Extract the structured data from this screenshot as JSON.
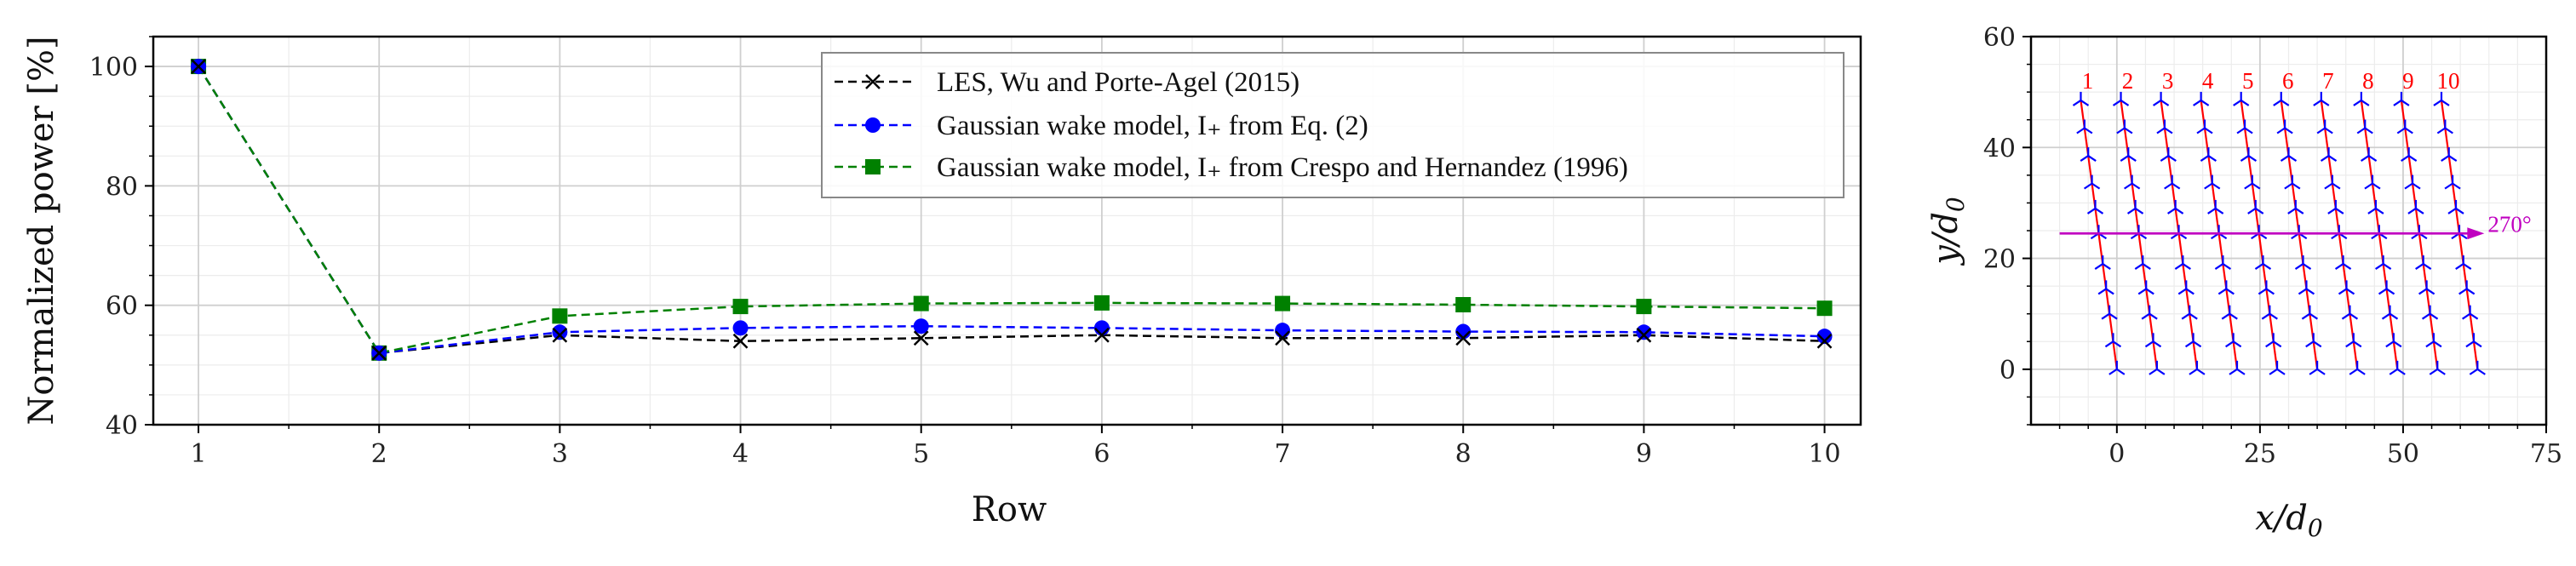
{
  "chart_data": [
    {
      "type": "line",
      "title": "",
      "xlabel": "Row",
      "ylabel": "Normalized power [%]",
      "xlim": [
        0.75,
        10.2
      ],
      "ylim": [
        40,
        105
      ],
      "xticks": [
        1,
        2,
        3,
        4,
        5,
        6,
        7,
        8,
        9,
        10
      ],
      "yticks": [
        40,
        60,
        80,
        100
      ],
      "grid": true,
      "legend_position": "top-right",
      "x": [
        1,
        2,
        3,
        4,
        5,
        6,
        7,
        8,
        9,
        10
      ],
      "series": [
        {
          "name": "LES, Wu and Porte-Agel (2015)",
          "legend_text": "LES, Wu and Porte-Agel (2015)",
          "color": "#000000",
          "marker": "x",
          "values": [
            100,
            52,
            55,
            54,
            54.5,
            55,
            54.5,
            54.5,
            55,
            54
          ]
        },
        {
          "name": "Gaussian wake model, I+ from Eq. (2)",
          "legend_text": "Gaussian wake model,  I₊  from Eq. (2)",
          "color": "#0000ff",
          "marker": "o",
          "values": [
            100,
            52,
            55.5,
            56.2,
            56.5,
            56.2,
            55.8,
            55.6,
            55.5,
            54.8
          ]
        },
        {
          "name": "Gaussian wake model, I+ from Crespo and Hernandez (1996)",
          "legend_text": "Gaussian wake model,  I₊  from Crespo and Hernandez (1996)",
          "color": "#008000",
          "marker": "s",
          "values": [
            100,
            52,
            58.2,
            59.8,
            60.3,
            60.4,
            60.3,
            60.1,
            59.8,
            59.5
          ]
        }
      ]
    },
    {
      "type": "scatter",
      "title": "",
      "xlabel": "x/d0",
      "ylabel": "y/d0",
      "xlim": [
        -15,
        75
      ],
      "ylim": [
        -10,
        60
      ],
      "xticks": [
        0,
        25,
        50,
        75
      ],
      "yticks": [
        0,
        20,
        40,
        60
      ],
      "grid": true,
      "turbine_color": "#0000ff",
      "row_line_color": "#ff0000",
      "row_labels": [
        "1",
        "2",
        "3",
        "4",
        "5",
        "6",
        "7",
        "8",
        "9",
        "10"
      ],
      "row_base_x": [
        0,
        7,
        14,
        21,
        28,
        35,
        42,
        49,
        56,
        63
      ],
      "row_top_x_offset": -6.3,
      "turbine_y": [
        0,
        5,
        10,
        14.5,
        19,
        24.5,
        29,
        33.5,
        38.5,
        43.5,
        48.5
      ],
      "wind_direction": {
        "label": "270°",
        "y": 24.5,
        "x_start": -10,
        "x_end": 63,
        "color": "#c000c0"
      }
    }
  ]
}
